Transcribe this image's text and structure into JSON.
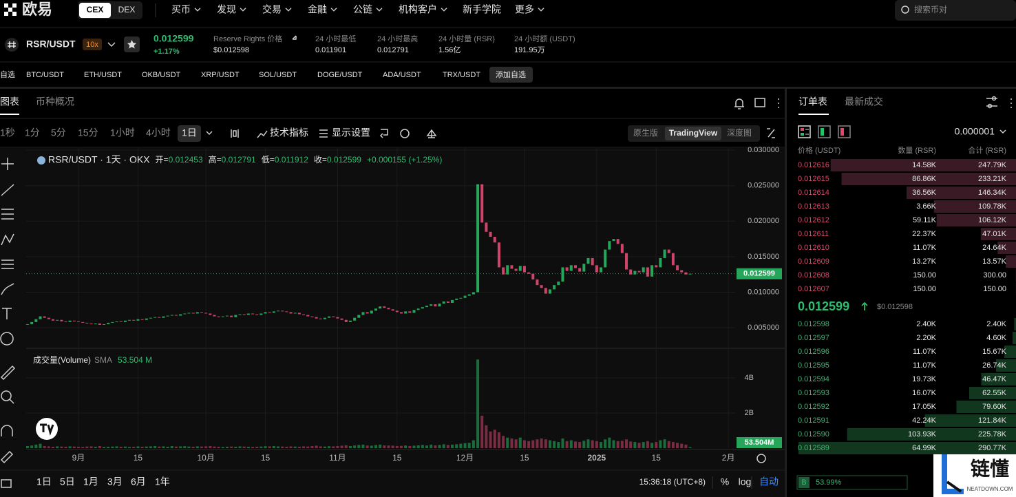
{
  "nav": {
    "logo": "欧易",
    "tabs": [
      "CEX",
      "DEX"
    ],
    "menu": [
      "买币",
      "发现",
      "交易",
      "金融",
      "公链",
      "机构客户",
      "新手学院",
      "更多"
    ],
    "search": "搜索币对"
  },
  "ticker": {
    "symbol": "RSR/USDT",
    "leverage": "10x",
    "price": "0.012599",
    "change": "+1.17%",
    "stats": [
      {
        "label": "Reserve Rights 价格",
        "value": "$0.012598"
      },
      {
        "label": "24 小时最低",
        "value": "0.011901"
      },
      {
        "label": "24 小时最高",
        "value": "0.012791"
      },
      {
        "label": "24 小时量 (RSR)",
        "value": "1.56亿"
      },
      {
        "label": "24 小时额 (USDT)",
        "value": "191.95万"
      }
    ]
  },
  "favorites": [
    "自选",
    "BTC/USDT",
    "ETH/USDT",
    "OKB/USDT",
    "XRP/USDT",
    "SOL/USDT",
    "DOGE/USDT",
    "ADA/USDT",
    "TRX/USDT",
    "添加自选"
  ],
  "chart_tabs": [
    "图表",
    "币种概况"
  ],
  "intervals": [
    "1秒",
    "1分",
    "5分",
    "15分",
    "1小时",
    "4小时",
    "1日"
  ],
  "tools": [
    "技术指标",
    "显示设置"
  ],
  "views": [
    "原生版",
    "TradingView",
    "深度图"
  ],
  "ranges": [
    "1日",
    "5日",
    "1月",
    "3月",
    "6月",
    "1年"
  ],
  "clock": "15:36:18 (UTC+8)",
  "scale_options": [
    "%",
    "log",
    "自动"
  ],
  "chart_data": [
    {
      "type": "candlestick",
      "title": "RSR/USDT · 1天 · OKX",
      "ohlc": [
        {
          "label": "开=",
          "value": "0.012453"
        },
        {
          "label": "高=",
          "value": "0.012791"
        },
        {
          "label": "低=",
          "value": "0.011912"
        },
        {
          "label": "收=",
          "value": "0.012599"
        }
      ],
      "change": "+0.000155 (+1.25%)",
      "up_color": "#26a65b",
      "down_color": "#d0436a",
      "values": [
        0.0055,
        0.0058,
        0.0062,
        0.0066,
        0.0064,
        0.0062,
        0.006,
        0.0061,
        0.0059,
        0.0058,
        0.006,
        0.0059,
        0.0058,
        0.0057,
        0.0056,
        0.0055,
        0.0056,
        0.0054,
        0.0055,
        0.0057,
        0.0058,
        0.0059,
        0.0058,
        0.006,
        0.0061,
        0.006,
        0.0062,
        0.0061,
        0.0063,
        0.0064,
        0.0065,
        0.0064,
        0.0066,
        0.0067,
        0.0068,
        0.0067,
        0.0069,
        0.007,
        0.0071,
        0.007,
        0.0072,
        0.0071,
        0.007,
        0.0068,
        0.0066,
        0.0065,
        0.0066,
        0.0067,
        0.0065,
        0.0068,
        0.0069,
        0.0068,
        0.007,
        0.0069,
        0.0068,
        0.007,
        0.0072,
        0.0071,
        0.0073,
        0.0074,
        0.0073,
        0.0072,
        0.007,
        0.0071,
        0.0069,
        0.0068,
        0.0066,
        0.0065,
        0.0063,
        0.0062,
        0.0064,
        0.0066,
        0.0065,
        0.0063,
        0.0061,
        0.0058,
        0.006,
        0.0064,
        0.0068,
        0.0072,
        0.007,
        0.0074,
        0.0077,
        0.008,
        0.0078,
        0.0076,
        0.0074,
        0.0072,
        0.007,
        0.0073,
        0.0071,
        0.0075,
        0.0077,
        0.0079,
        0.0081,
        0.0083,
        0.008,
        0.0084,
        0.0087,
        0.0085,
        0.0089,
        0.0091,
        0.0092,
        0.0095,
        0.0097,
        0.01,
        0.0252,
        0.0198,
        0.0185,
        0.0178,
        0.017,
        0.0135,
        0.0125,
        0.0138,
        0.0133,
        0.013,
        0.0137,
        0.0128,
        0.0126,
        0.0118,
        0.011,
        0.0106,
        0.0098,
        0.0104,
        0.011,
        0.0115,
        0.0135,
        0.013,
        0.0138,
        0.0134,
        0.0129,
        0.014,
        0.0148,
        0.0138,
        0.0128,
        0.0135,
        0.016,
        0.0172,
        0.0175,
        0.0168,
        0.0155,
        0.0132,
        0.0125,
        0.013,
        0.0128,
        0.0135,
        0.0122,
        0.0138,
        0.0135,
        0.0148,
        0.016,
        0.0155,
        0.0138,
        0.0131,
        0.0128,
        0.0125,
        0.012599
      ],
      "xlim": [
        -0.32,
        166.6
      ],
      "xticks": [
        {
          "value": 12,
          "label": "9月"
        },
        {
          "value": 26,
          "label": "15"
        },
        {
          "value": 42,
          "label": "10月"
        },
        {
          "value": 56,
          "label": "15"
        },
        {
          "value": 73,
          "label": "11月"
        },
        {
          "value": 87,
          "label": "15"
        },
        {
          "value": 103,
          "label": "12月"
        },
        {
          "value": 117,
          "label": "15"
        },
        {
          "value": 134,
          "label": "2025"
        },
        {
          "value": 148,
          "label": "15"
        },
        {
          "value": 165,
          "label": "2月"
        }
      ],
      "ylim": [
        0.0022,
        0.0303
      ],
      "yticks": [
        {
          "value": 0.03,
          "label": "0.030000"
        },
        {
          "value": 0.025,
          "label": "0.025000"
        },
        {
          "value": 0.02,
          "label": "0.020000"
        },
        {
          "value": 0.015,
          "label": "0.015000"
        },
        {
          "value": 0.01,
          "label": "0.010000"
        },
        {
          "value": 0.005,
          "label": "0.005000"
        }
      ],
      "last_price": {
        "value": 0.012599,
        "label": "0.012599"
      }
    },
    {
      "type": "bar",
      "title": "成交量(Volume)",
      "indicator": "SMA",
      "indicator_value": "53.504 M",
      "values": [
        0.12,
        0.15,
        0.2,
        0.25,
        0.12,
        0.1,
        0.08,
        0.1,
        0.09,
        0.08,
        0.1,
        0.09,
        0.08,
        0.07,
        0.09,
        0.1,
        0.08,
        0.12,
        0.07,
        0.08,
        0.09,
        0.1,
        0.08,
        0.09,
        0.07,
        0.08,
        0.1,
        0.08,
        0.09,
        0.1,
        0.12,
        0.09,
        0.1,
        0.08,
        0.12,
        0.09,
        0.1,
        0.11,
        0.09,
        0.08,
        0.1,
        0.09,
        0.1,
        0.12,
        0.09,
        0.08,
        0.07,
        0.08,
        0.09,
        0.08,
        0.1,
        0.09,
        0.08,
        0.07,
        0.08,
        0.09,
        0.11,
        0.1,
        0.12,
        0.1,
        0.09,
        0.08,
        0.1,
        0.09,
        0.08,
        0.1,
        0.09,
        0.12,
        0.14,
        0.1,
        0.09,
        0.11,
        0.1,
        0.12,
        0.14,
        0.16,
        0.12,
        0.15,
        0.18,
        0.2,
        0.15,
        0.14,
        0.18,
        0.2,
        0.16,
        0.15,
        0.14,
        0.12,
        0.13,
        0.15,
        0.12,
        0.14,
        0.16,
        0.18,
        0.15,
        0.2,
        0.16,
        0.18,
        0.22,
        0.18,
        0.2,
        0.22,
        0.25,
        0.28,
        0.3,
        0.45,
        5.05,
        1.85,
        1.3,
        0.95,
        1.05,
        0.9,
        0.7,
        0.6,
        0.55,
        0.5,
        0.6,
        0.45,
        0.4,
        0.45,
        0.5,
        0.55,
        0.5,
        0.45,
        0.4,
        0.35,
        0.55,
        0.4,
        0.45,
        0.38,
        0.35,
        0.42,
        0.5,
        0.45,
        0.4,
        0.35,
        0.5,
        0.6,
        0.45,
        0.4,
        0.42,
        0.5,
        0.38,
        0.35,
        0.3,
        0.35,
        0.4,
        0.3,
        0.35,
        0.45,
        0.5,
        0.4,
        0.35,
        0.3,
        0.25,
        0.2,
        0.053504
      ],
      "ylim": [
        0,
        5.65
      ],
      "yticks": [
        {
          "value": 4,
          "label": "4B"
        },
        {
          "value": 2,
          "label": "2B"
        }
      ],
      "last_value": {
        "value": 0.053504,
        "label": "53.504M"
      }
    }
  ],
  "order_book": {
    "tabs": [
      "订单表",
      "最新成交"
    ],
    "precision": "0.000001",
    "headers": [
      "价格 (USDT)",
      "数量 (RSR)",
      "合计 (RSR)"
    ],
    "asks": [
      {
        "price": "0.012616",
        "amount": "14.58K",
        "total": {
          "value": 247790,
          "label": "247.79K"
        }
      },
      {
        "price": "0.012615",
        "amount": "86.86K",
        "total": {
          "value": 233210,
          "label": "233.21K"
        }
      },
      {
        "price": "0.012614",
        "amount": "36.56K",
        "total": {
          "value": 146340,
          "label": "146.34K"
        }
      },
      {
        "price": "0.012613",
        "amount": "3.66K",
        "total": {
          "value": 109780,
          "label": "109.78K"
        }
      },
      {
        "price": "0.012612",
        "amount": "59.11K",
        "total": {
          "value": 106120,
          "label": "106.12K"
        }
      },
      {
        "price": "0.012611",
        "amount": "22.37K",
        "total": {
          "value": 47010,
          "label": "47.01K"
        }
      },
      {
        "price": "0.012610",
        "amount": "11.07K",
        "total": {
          "value": 24640,
          "label": "24.64K"
        }
      },
      {
        "price": "0.012609",
        "amount": "13.27K",
        "total": {
          "value": 13570,
          "label": "13.57K"
        }
      },
      {
        "price": "0.012608",
        "amount": "150.00",
        "total": {
          "value": 300,
          "label": "300.00"
        }
      },
      {
        "price": "0.012607",
        "amount": "150.00",
        "total": {
          "value": 150,
          "label": "150.00"
        }
      }
    ],
    "mid": {
      "price": "0.012599",
      "usd": "$0.012598"
    },
    "bids": [
      {
        "price": "0.012598",
        "amount": "2.40K",
        "total": {
          "value": 2400,
          "label": "2.40K"
        }
      },
      {
        "price": "0.012597",
        "amount": "2.20K",
        "total": {
          "value": 4600,
          "label": "4.60K"
        }
      },
      {
        "price": "0.012596",
        "amount": "11.07K",
        "total": {
          "value": 15670,
          "label": "15.67K"
        }
      },
      {
        "price": "0.012595",
        "amount": "11.07K",
        "total": {
          "value": 26740,
          "label": "26.74K"
        }
      },
      {
        "price": "0.012594",
        "amount": "19.73K",
        "total": {
          "value": 46470,
          "label": "46.47K"
        }
      },
      {
        "price": "0.012593",
        "amount": "16.07K",
        "total": {
          "value": 62550,
          "label": "62.55K"
        }
      },
      {
        "price": "0.012592",
        "amount": "17.05K",
        "total": {
          "value": 79600,
          "label": "79.60K"
        }
      },
      {
        "price": "0.012591",
        "amount": "42.24K",
        "total": {
          "value": 121840,
          "label": "121.84K"
        }
      },
      {
        "price": "0.012590",
        "amount": "103.93K",
        "total": {
          "value": 225780,
          "label": "225.78K"
        }
      },
      {
        "price": "0.012589",
        "amount": "64.99K",
        "total": {
          "value": 290770,
          "label": "290.77K"
        }
      }
    ],
    "ratio": {
      "side": "B",
      "value": "53.99%"
    }
  },
  "watermark": {
    "name": "链懂",
    "site": "NEATDOWN.COM"
  }
}
